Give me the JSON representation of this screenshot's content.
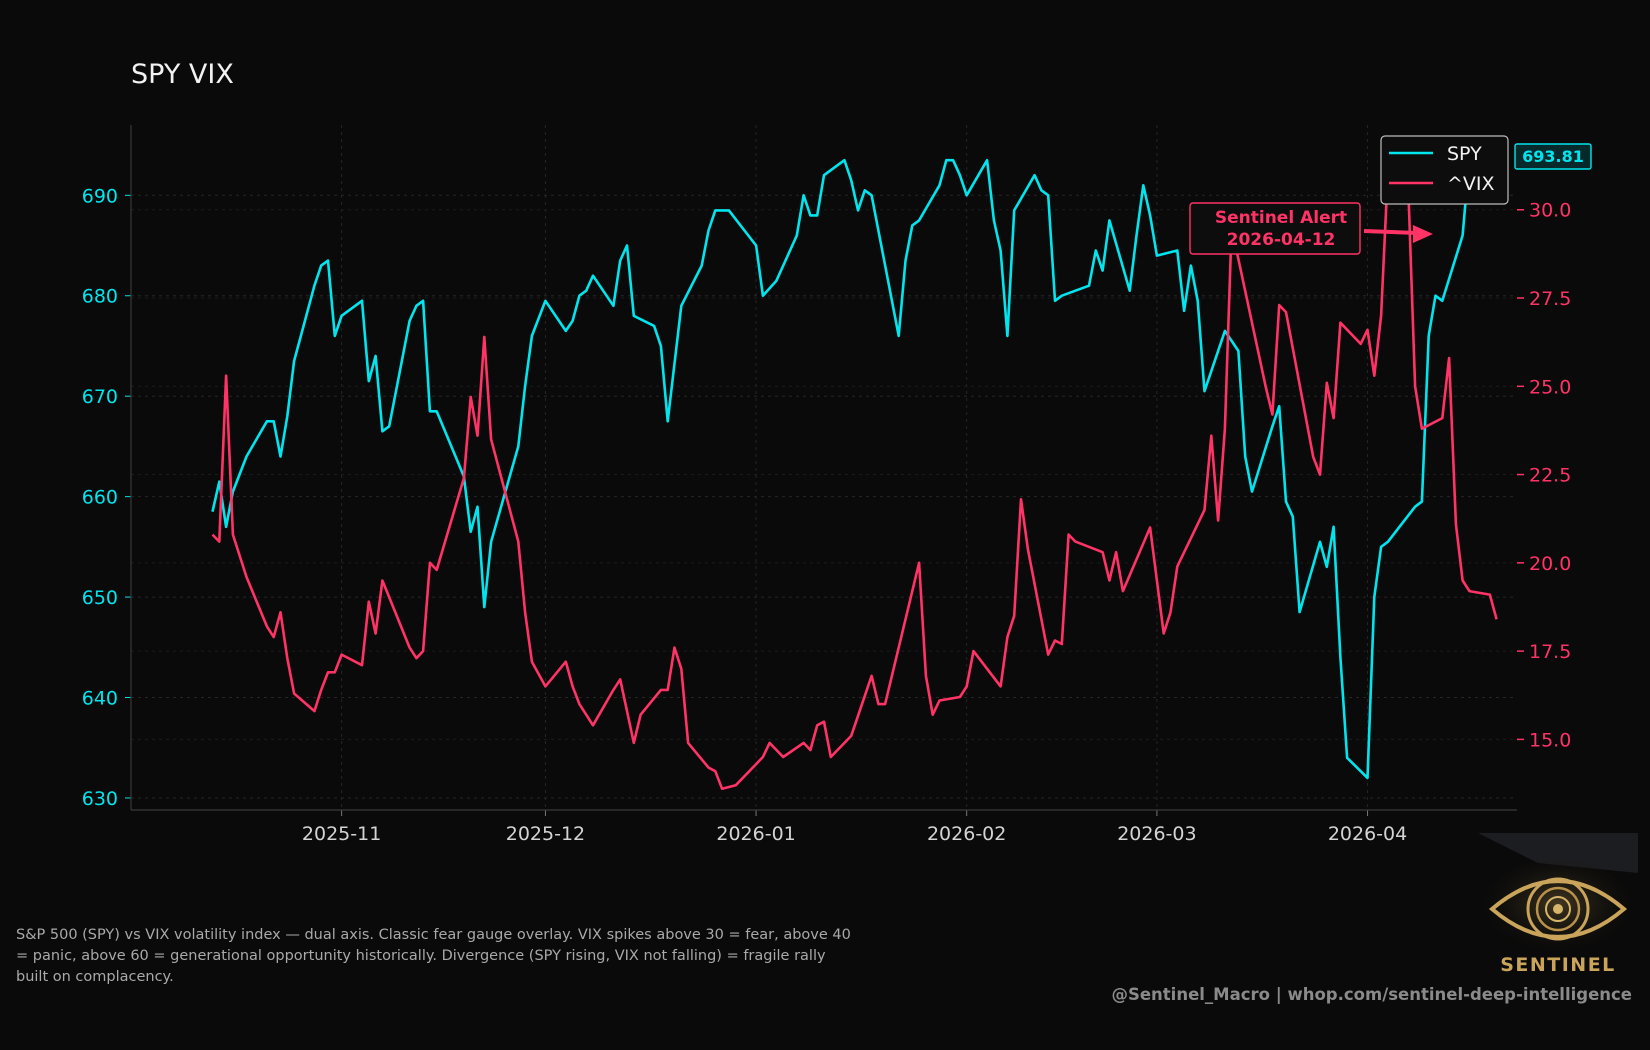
{
  "chart_data": {
    "type": "line",
    "title": "SPY VIX",
    "x_tick_labels": [
      "2025-11",
      "2025-12",
      "2026-01",
      "2026-02",
      "2026-03",
      "2026-04"
    ],
    "x_range": [
      "2025-10-01",
      "2026-04-23"
    ],
    "y_left": {
      "ticks": [
        630,
        640,
        650,
        660,
        670,
        680,
        690
      ],
      "range": [
        628.8,
        697
      ],
      "color": "#00e5ee"
    },
    "y_right": {
      "ticks": [
        "15.0",
        "17.5",
        "20.0",
        "22.5",
        "25.0",
        "27.5",
        "30.0"
      ],
      "range": [
        13.0,
        32.4
      ],
      "color": "#ff3366"
    },
    "grid": true,
    "legend_position": "top-right",
    "series": [
      {
        "name": "SPY",
        "axis": "left",
        "color": "#00e5ee",
        "points": [
          [
            "2025-10-13",
            658.5
          ],
          [
            "2025-10-14",
            661.5
          ],
          [
            "2025-10-15",
            657.0
          ],
          [
            "2025-10-16",
            660.5
          ],
          [
            "2025-10-18",
            664.0
          ],
          [
            "2025-10-21",
            667.5
          ],
          [
            "2025-10-22",
            667.5
          ],
          [
            "2025-10-23",
            664.0
          ],
          [
            "2025-10-24",
            668.0
          ],
          [
            "2025-10-25",
            673.5
          ],
          [
            "2025-10-28",
            681.0
          ],
          [
            "2025-10-29",
            683.0
          ],
          [
            "2025-10-30",
            683.5
          ],
          [
            "2025-10-31",
            676.0
          ],
          [
            "2025-11-01",
            678.0
          ],
          [
            "2025-11-04",
            679.5
          ],
          [
            "2025-11-05",
            671.5
          ],
          [
            "2025-11-06",
            674.0
          ],
          [
            "2025-11-07",
            666.5
          ],
          [
            "2025-11-08",
            667.0
          ],
          [
            "2025-11-11",
            677.5
          ],
          [
            "2025-11-12",
            679.0
          ],
          [
            "2025-11-13",
            679.5
          ],
          [
            "2025-11-14",
            668.5
          ],
          [
            "2025-11-15",
            668.5
          ],
          [
            "2025-11-19",
            662.0
          ],
          [
            "2025-11-20",
            656.5
          ],
          [
            "2025-11-21",
            659.0
          ],
          [
            "2025-11-22",
            649.0
          ],
          [
            "2025-11-23",
            655.5
          ],
          [
            "2025-11-27",
            665.0
          ],
          [
            "2025-11-28",
            671.0
          ],
          [
            "2025-11-29",
            676.0
          ],
          [
            "2025-12-01",
            679.5
          ],
          [
            "2025-12-04",
            676.5
          ],
          [
            "2025-12-05",
            677.5
          ],
          [
            "2025-12-06",
            680.0
          ],
          [
            "2025-12-07",
            680.5
          ],
          [
            "2025-12-08",
            682.0
          ],
          [
            "2025-12-11",
            679.0
          ],
          [
            "2025-12-12",
            683.5
          ],
          [
            "2025-12-13",
            685.0
          ],
          [
            "2025-12-14",
            678.0
          ],
          [
            "2025-12-17",
            677.0
          ],
          [
            "2025-12-18",
            675.0
          ],
          [
            "2025-12-19",
            667.5
          ],
          [
            "2025-12-21",
            679.0
          ],
          [
            "2025-12-24",
            683.0
          ],
          [
            "2025-12-25",
            686.5
          ],
          [
            "2025-12-26",
            688.5
          ],
          [
            "2025-12-28",
            688.5
          ],
          [
            "2026-01-01",
            685.0
          ],
          [
            "2026-01-02",
            680.0
          ],
          [
            "2026-01-04",
            681.5
          ],
          [
            "2026-01-07",
            686.0
          ],
          [
            "2026-01-08",
            690.0
          ],
          [
            "2026-01-09",
            688.0
          ],
          [
            "2026-01-10",
            688.0
          ],
          [
            "2026-01-11",
            692.0
          ],
          [
            "2026-01-14",
            693.5
          ],
          [
            "2026-01-15",
            691.5
          ],
          [
            "2026-01-16",
            688.5
          ],
          [
            "2026-01-17",
            690.5
          ],
          [
            "2026-01-18",
            690.0
          ],
          [
            "2026-01-22",
            676.0
          ],
          [
            "2026-01-23",
            683.5
          ],
          [
            "2026-01-24",
            687.0
          ],
          [
            "2026-01-25",
            687.5
          ],
          [
            "2026-01-28",
            691.0
          ],
          [
            "2026-01-29",
            693.5
          ],
          [
            "2026-01-30",
            693.5
          ],
          [
            "2026-01-31",
            692.0
          ],
          [
            "2026-02-01",
            690.0
          ],
          [
            "2026-02-04",
            693.5
          ],
          [
            "2026-02-05",
            687.5
          ],
          [
            "2026-02-06",
            684.5
          ],
          [
            "2026-02-07",
            676.0
          ],
          [
            "2026-02-08",
            688.5
          ],
          [
            "2026-02-11",
            692.0
          ],
          [
            "2026-02-12",
            690.5
          ],
          [
            "2026-02-13",
            690.0
          ],
          [
            "2026-02-14",
            679.5
          ],
          [
            "2026-02-15",
            680.0
          ],
          [
            "2026-02-19",
            681.0
          ],
          [
            "2026-02-20",
            684.5
          ],
          [
            "2026-02-21",
            682.5
          ],
          [
            "2026-02-22",
            687.5
          ],
          [
            "2026-02-25",
            680.5
          ],
          [
            "2026-02-26",
            686.0
          ],
          [
            "2026-02-27",
            691.0
          ],
          [
            "2026-02-28",
            688.0
          ],
          [
            "2026-03-01",
            684.0
          ],
          [
            "2026-03-04",
            684.5
          ],
          [
            "2026-03-05",
            678.5
          ],
          [
            "2026-03-06",
            683.0
          ],
          [
            "2026-03-07",
            679.5
          ],
          [
            "2026-03-08",
            670.5
          ],
          [
            "2026-03-11",
            676.5
          ],
          [
            "2026-03-12",
            675.5
          ],
          [
            "2026-03-13",
            674.5
          ],
          [
            "2026-03-14",
            664.0
          ],
          [
            "2026-03-15",
            660.5
          ],
          [
            "2026-03-18",
            667.0
          ],
          [
            "2026-03-19",
            669.0
          ],
          [
            "2026-03-20",
            659.5
          ],
          [
            "2026-03-21",
            658.0
          ],
          [
            "2026-03-22",
            648.5
          ],
          [
            "2026-03-25",
            655.5
          ],
          [
            "2026-03-26",
            653.0
          ],
          [
            "2026-03-27",
            657.0
          ],
          [
            "2026-03-28",
            644.0
          ],
          [
            "2026-03-29",
            634.0
          ],
          [
            "2026-04-01",
            632.0
          ],
          [
            "2026-04-02",
            650.0
          ],
          [
            "2026-04-03",
            655.0
          ],
          [
            "2026-04-04",
            655.5
          ],
          [
            "2026-04-08",
            659.0
          ],
          [
            "2026-04-09",
            659.5
          ],
          [
            "2026-04-10",
            676.0
          ],
          [
            "2026-04-11",
            680.0
          ],
          [
            "2026-04-12",
            679.5
          ],
          [
            "2026-04-15",
            686.0
          ],
          [
            "2026-04-16",
            693.81
          ]
        ]
      },
      {
        "name": "^VIX",
        "axis": "right",
        "color": "#ff3366",
        "points": [
          [
            "2025-10-13",
            20.8
          ],
          [
            "2025-10-14",
            20.6
          ],
          [
            "2025-10-15",
            25.3
          ],
          [
            "2025-10-16",
            20.8
          ],
          [
            "2025-10-18",
            19.6
          ],
          [
            "2025-10-21",
            18.2
          ],
          [
            "2025-10-22",
            17.9
          ],
          [
            "2025-10-23",
            18.6
          ],
          [
            "2025-10-24",
            17.3
          ],
          [
            "2025-10-25",
            16.3
          ],
          [
            "2025-10-28",
            15.8
          ],
          [
            "2025-10-29",
            16.4
          ],
          [
            "2025-10-30",
            16.9
          ],
          [
            "2025-10-31",
            16.9
          ],
          [
            "2025-11-01",
            17.4
          ],
          [
            "2025-11-04",
            17.1
          ],
          [
            "2025-11-05",
            18.9
          ],
          [
            "2025-11-06",
            18.0
          ],
          [
            "2025-11-07",
            19.5
          ],
          [
            "2025-11-11",
            17.6
          ],
          [
            "2025-11-12",
            17.3
          ],
          [
            "2025-11-13",
            17.5
          ],
          [
            "2025-11-14",
            20.0
          ],
          [
            "2025-11-15",
            19.8
          ],
          [
            "2025-11-19",
            22.4
          ],
          [
            "2025-11-20",
            24.7
          ],
          [
            "2025-11-21",
            23.6
          ],
          [
            "2025-11-22",
            26.4
          ],
          [
            "2025-11-23",
            23.5
          ],
          [
            "2025-11-27",
            20.6
          ],
          [
            "2025-11-28",
            18.6
          ],
          [
            "2025-11-29",
            17.2
          ],
          [
            "2025-12-01",
            16.5
          ],
          [
            "2025-12-04",
            17.2
          ],
          [
            "2025-12-05",
            16.5
          ],
          [
            "2025-12-06",
            16.0
          ],
          [
            "2025-12-08",
            15.4
          ],
          [
            "2025-12-11",
            16.4
          ],
          [
            "2025-12-12",
            16.7
          ],
          [
            "2025-12-14",
            14.9
          ],
          [
            "2025-12-15",
            15.7
          ],
          [
            "2025-12-18",
            16.4
          ],
          [
            "2025-12-19",
            16.4
          ],
          [
            "2025-12-20",
            17.6
          ],
          [
            "2025-12-21",
            17.0
          ],
          [
            "2025-12-22",
            14.9
          ],
          [
            "2025-12-25",
            14.2
          ],
          [
            "2025-12-26",
            14.1
          ],
          [
            "2025-12-27",
            13.6
          ],
          [
            "2025-12-29",
            13.7
          ],
          [
            "2026-01-01",
            14.3
          ],
          [
            "2026-01-02",
            14.5
          ],
          [
            "2026-01-03",
            14.9
          ],
          [
            "2026-01-05",
            14.5
          ],
          [
            "2026-01-08",
            14.9
          ],
          [
            "2026-01-09",
            14.7
          ],
          [
            "2026-01-10",
            15.4
          ],
          [
            "2026-01-11",
            15.5
          ],
          [
            "2026-01-12",
            14.5
          ],
          [
            "2026-01-15",
            15.1
          ],
          [
            "2026-01-18",
            16.8
          ],
          [
            "2026-01-19",
            16.0
          ],
          [
            "2026-01-20",
            16.0
          ],
          [
            "2026-01-25",
            20.0
          ],
          [
            "2026-01-26",
            16.8
          ],
          [
            "2026-01-27",
            15.7
          ],
          [
            "2026-01-28",
            16.1
          ],
          [
            "2026-01-31",
            16.2
          ],
          [
            "2026-02-01",
            16.5
          ],
          [
            "2026-02-02",
            17.5
          ],
          [
            "2026-02-06",
            16.5
          ],
          [
            "2026-02-07",
            17.9
          ],
          [
            "2026-02-08",
            18.5
          ],
          [
            "2026-02-09",
            21.8
          ],
          [
            "2026-02-10",
            20.4
          ],
          [
            "2026-02-13",
            17.4
          ],
          [
            "2026-02-14",
            17.8
          ],
          [
            "2026-02-15",
            17.7
          ],
          [
            "2026-02-16",
            20.8
          ],
          [
            "2026-02-17",
            20.6
          ],
          [
            "2026-02-21",
            20.3
          ],
          [
            "2026-02-22",
            19.5
          ],
          [
            "2026-02-23",
            20.3
          ],
          [
            "2026-02-24",
            19.2
          ],
          [
            "2026-02-28",
            21.0
          ],
          [
            "2026-03-02",
            18.0
          ],
          [
            "2026-03-03",
            18.6
          ],
          [
            "2026-03-04",
            19.9
          ],
          [
            "2026-03-08",
            21.5
          ],
          [
            "2026-03-09",
            23.6
          ],
          [
            "2026-03-10",
            21.2
          ],
          [
            "2026-03-11",
            23.8
          ],
          [
            "2026-03-12",
            29.5
          ],
          [
            "2026-03-17",
            25.0
          ],
          [
            "2026-03-18",
            24.2
          ],
          [
            "2026-03-19",
            27.3
          ],
          [
            "2026-03-20",
            27.1
          ],
          [
            "2026-03-24",
            23.0
          ],
          [
            "2026-03-25",
            22.5
          ],
          [
            "2026-03-26",
            25.1
          ],
          [
            "2026-03-27",
            24.1
          ],
          [
            "2026-03-28",
            26.8
          ],
          [
            "2026-03-31",
            26.2
          ],
          [
            "2026-04-01",
            26.6
          ],
          [
            "2026-04-02",
            25.3
          ],
          [
            "2026-04-03",
            27.0
          ],
          [
            "2026-04-04",
            31.1
          ],
          [
            "2026-04-07",
            30.6
          ],
          [
            "2026-04-08",
            25.0
          ],
          [
            "2026-04-09",
            23.8
          ],
          [
            "2026-04-12",
            24.1
          ],
          [
            "2026-04-13",
            25.8
          ],
          [
            "2026-04-14",
            21.1
          ],
          [
            "2026-04-15",
            19.5
          ],
          [
            "2026-04-16",
            19.2
          ],
          [
            "2026-04-19",
            19.1
          ],
          [
            "2026-04-20",
            18.4
          ]
        ]
      }
    ],
    "last_value_label": "693.81",
    "annotation": {
      "line1": "Sentinel Alert",
      "line2": "2026-04-12"
    }
  },
  "caption": "S&P 500 (SPY) vs VIX volatility index — dual axis. Classic fear gauge overlay. VIX spikes above 30 = fear, above 40 = panic, above 60 = generational opportunity historically. Divergence (SPY rising, VIX not falling) = fragile rally built on complacency.",
  "credit": "@Sentinel_Macro  |  whop.com/sentinel-deep-intelligence",
  "logo_text": "SENTINEL",
  "colors": {
    "background": "#0a0a0a",
    "spy": "#00e5ee",
    "vix": "#ff3366",
    "gold": "#c9a45a"
  }
}
